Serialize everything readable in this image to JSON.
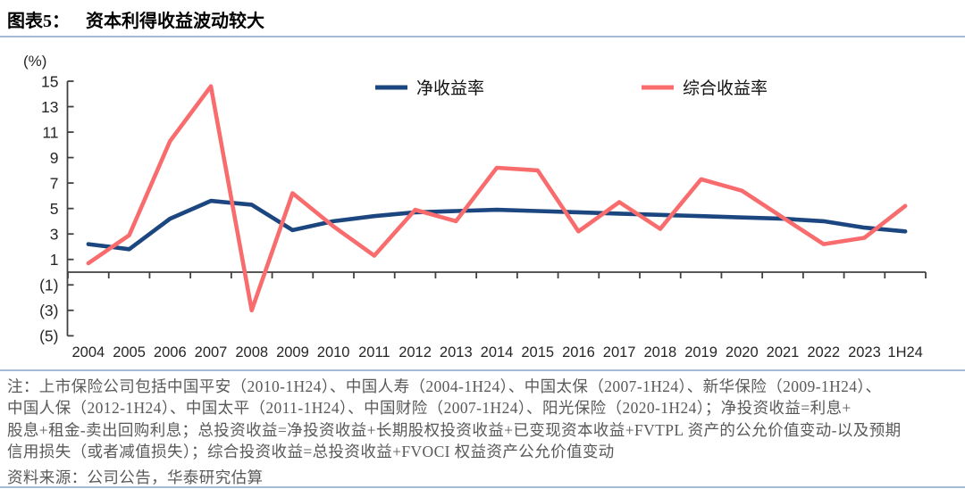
{
  "header": {
    "figure_label": "图表5：",
    "title": "资本利得收益波动较大"
  },
  "chart_data": {
    "type": "line",
    "unit_label": "(%)",
    "categories": [
      "2004",
      "2005",
      "2006",
      "2007",
      "2008",
      "2009",
      "2010",
      "2011",
      "2012",
      "2013",
      "2014",
      "2015",
      "2016",
      "2017",
      "2018",
      "2019",
      "2020",
      "2021",
      "2022",
      "2023",
      "1H24"
    ],
    "series": [
      {
        "name": "净收益率",
        "color": "#1b4680",
        "values": [
          2.2,
          1.8,
          4.2,
          5.6,
          5.3,
          3.3,
          4.0,
          4.4,
          4.7,
          4.8,
          4.9,
          4.8,
          4.7,
          4.6,
          4.5,
          4.4,
          4.3,
          4.2,
          4.0,
          3.5,
          3.2
        ]
      },
      {
        "name": "综合收益率",
        "color": "#f96c6d",
        "values": [
          0.7,
          2.9,
          10.3,
          14.6,
          -3.0,
          6.2,
          3.6,
          1.3,
          4.9,
          4.0,
          8.2,
          8.0,
          3.2,
          5.5,
          3.4,
          7.3,
          6.4,
          4.3,
          2.2,
          2.7,
          5.2
        ]
      }
    ],
    "ylim": [
      -5,
      15
    ],
    "ytick_step": 2,
    "yticks_display": [
      "15",
      "13",
      "11",
      "9",
      "7",
      "5",
      "3",
      "1",
      "(1)",
      "(3)",
      "(5)"
    ],
    "grid": false,
    "legend_position": "top-center",
    "axis_color": "#404040"
  },
  "footer": {
    "note_lines": [
      "注：上市保险公司包括中国平安（2010-1H24）、中国人寿（2004-1H24）、中国太保（2007-1H24）、新华保险（2009-1H24）、",
      "中国人保（2012-1H24）、中国太平（2011-1H24）、中国财险（2007-1H24）、阳光保险（2020-1H24）；净投资收益=利息+",
      "股息+租金-卖出回购利息；总投资收益=净投资收益+长期股权投资收益+已变现资本收益+FVTPL 资产的公允价值变动-以及预期",
      "信用损失（或者减值损失）；综合投资收益=总投资收益+FVOCI 权益资产公允价值变动"
    ],
    "source_line": "资料来源：公司公告，华泰研究估算"
  },
  "colors": {
    "accent_rule": "#a4bad6",
    "note_text": "#595959",
    "title_text": "#000000"
  }
}
